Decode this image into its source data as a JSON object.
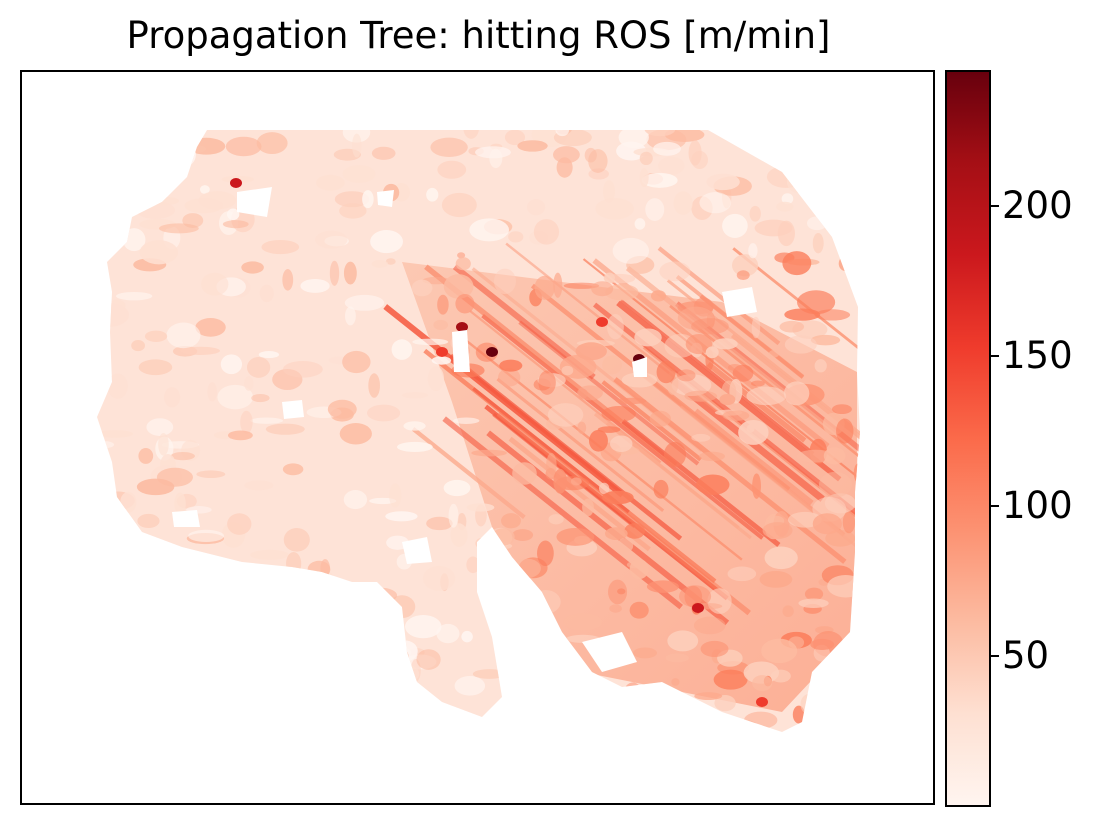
{
  "chart_data": {
    "type": "heatmap",
    "title": "Propagation Tree: hitting ROS [m/min]",
    "colormap": "Reds",
    "colorbar": {
      "min": 0,
      "max": 245,
      "ticks": [
        50,
        100,
        150,
        200
      ],
      "tick_labels": [
        "50",
        "100",
        "150",
        "200"
      ]
    },
    "xaxis_visible": false,
    "yaxis_visible": false,
    "grid": false,
    "colors": {
      "low": "#fff5f0",
      "high": "#67000d",
      "background": "#ffffff",
      "frame": "#000000"
    }
  }
}
